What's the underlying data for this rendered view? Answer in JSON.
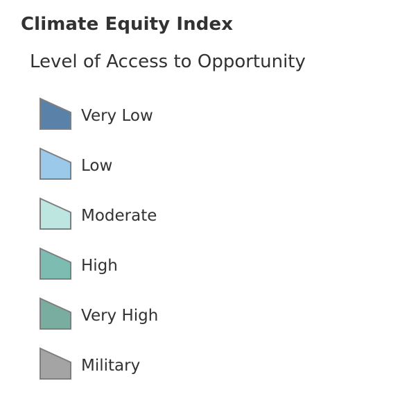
{
  "legend": {
    "layer_title": "Climate Equity Index",
    "field_title": "Level of Access to Opportunity",
    "outline_color": "#7f7f7f",
    "items": [
      {
        "label": "Very Low",
        "color": "#5a81a8"
      },
      {
        "label": "Low",
        "color": "#9bc9ea"
      },
      {
        "label": "Moderate",
        "color": "#bee6e0"
      },
      {
        "label": "High",
        "color": "#7dbcb1"
      },
      {
        "label": "Very High",
        "color": "#78ad9f"
      },
      {
        "label": "Military",
        "color": "#a4a4a4"
      }
    ]
  }
}
